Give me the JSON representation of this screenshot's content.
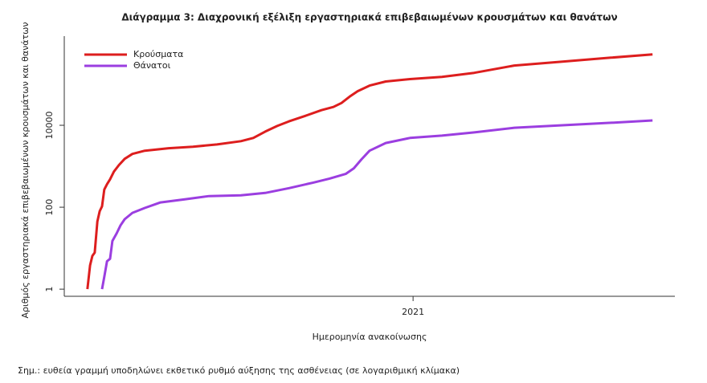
{
  "chart_data": {
    "type": "line",
    "title": "Διάγραμμα 3: Διαχρονική εξέλιξη εργαστηριακά επιβεβαιωμένων κρουσμάτων και θανάτων",
    "x_label": "Ημερομηνία ανακοίνωσης",
    "y_label": "Αριθμός εργαστηριακά επιβεβαιωμένων κρουσμάτων και θανάτων",
    "note": "Σημ.: ευθεία γραμμή υποδηλώνει εκθετικό ρυθμό αύξησης της ασθένειας (σε λογαριθμική κλίμακα)",
    "log_y": true,
    "legend": "top-left",
    "xlim": [
      2020.094,
      2021.68
    ],
    "xticks": [
      2021
    ],
    "ylim": [
      0.67,
      1500000
    ],
    "yticks": [
      1,
      100,
      10000
    ],
    "series": [
      {
        "name": "Κρούσματα",
        "color": "#dd1e1e",
        "x": [
          2020.154,
          2020.161,
          2020.167,
          2020.173,
          2020.18,
          2020.186,
          2020.192,
          2020.198,
          2020.205,
          2020.213,
          2020.223,
          2020.236,
          2020.251,
          2020.271,
          2020.303,
          2020.365,
          2020.428,
          2020.491,
          2020.553,
          2020.585,
          2020.616,
          2020.647,
          2020.678,
          2020.72,
          2020.762,
          2020.793,
          2020.814,
          2020.835,
          2020.856,
          2020.887,
          2020.929,
          2020.992,
          2021.075,
          2021.159,
          2021.263,
          2021.388,
          2021.514,
          2021.622
        ],
        "values": [
          1,
          3.8,
          6.5,
          7.8,
          45,
          80,
          105,
          270,
          365,
          480,
          740,
          1070,
          1520,
          2000,
          2400,
          2750,
          3000,
          3400,
          4100,
          4900,
          7000,
          9600,
          12500,
          17000,
          23400,
          28000,
          35000,
          50000,
          68000,
          93000,
          117000,
          134000,
          152000,
          191000,
          288000,
          357000,
          447000,
          537000
        ]
      },
      {
        "name": "Θάνατοι",
        "color": "#9b3ee0",
        "x": [
          2020.192,
          2020.198,
          2020.205,
          2020.213,
          2020.219,
          2020.23,
          2020.24,
          2020.251,
          2020.271,
          2020.303,
          2020.344,
          2020.407,
          2020.47,
          2020.553,
          2020.616,
          2020.678,
          2020.741,
          2020.783,
          2020.825,
          2020.846,
          2020.866,
          2020.887,
          2020.929,
          2020.992,
          2021.075,
          2021.159,
          2021.263,
          2021.388,
          2021.514,
          2021.622
        ],
        "values": [
          1,
          2,
          4.8,
          5.5,
          15,
          23,
          36,
          51,
          73,
          96,
          131,
          156,
          187,
          195,
          223,
          293,
          400,
          500,
          650,
          890,
          1470,
          2400,
          3700,
          4900,
          5600,
          6700,
          8700,
          10000,
          11500,
          13100
        ]
      }
    ]
  }
}
